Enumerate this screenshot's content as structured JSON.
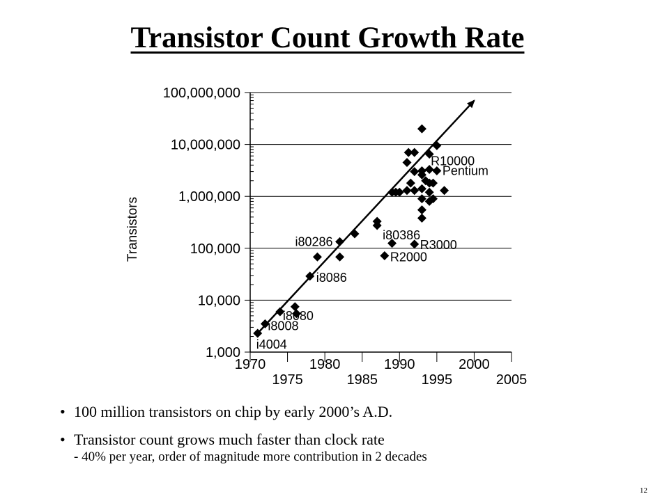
{
  "title": "Transistor Count Growth Rate",
  "chart_data": {
    "type": "scatter",
    "ylabel": "Transistors",
    "xlabel": "",
    "y_scale": "log",
    "xlim": [
      1970,
      2005
    ],
    "ylim": [
      1000,
      100000000
    ],
    "x_ticks_upper": [
      "1970",
      "1980",
      "1990",
      "2000"
    ],
    "x_ticks_lower": [
      "1975",
      "1985",
      "1995",
      "2005"
    ],
    "y_ticks": [
      "1,000",
      "10,000",
      "100,000",
      "1,000,000",
      "10,000,000",
      "100,000,000"
    ],
    "grid": "horizontal lines at each decade",
    "trend_line": {
      "from": [
        1971,
        2300
      ],
      "to": [
        2000,
        70000000
      ]
    },
    "points": [
      {
        "x": 1971.0,
        "y": 2300
      },
      {
        "x": 1972.0,
        "y": 3500
      },
      {
        "x": 1974.0,
        "y": 6000
      },
      {
        "x": 1976.0,
        "y": 7500
      },
      {
        "x": 1976.2,
        "y": 5500
      },
      {
        "x": 1978.0,
        "y": 29000
      },
      {
        "x": 1979.0,
        "y": 68000
      },
      {
        "x": 1982.0,
        "y": 134000
      },
      {
        "x": 1982.0,
        "y": 68000
      },
      {
        "x": 1984.0,
        "y": 190000
      },
      {
        "x": 1987.0,
        "y": 275000
      },
      {
        "x": 1987.0,
        "y": 330000
      },
      {
        "x": 1988.0,
        "y": 72000
      },
      {
        "x": 1989.0,
        "y": 1200000
      },
      {
        "x": 1989.5,
        "y": 1200000
      },
      {
        "x": 1990.0,
        "y": 1200000
      },
      {
        "x": 1989.0,
        "y": 125000
      },
      {
        "x": 1991.0,
        "y": 4500000
      },
      {
        "x": 1991.2,
        "y": 7000000
      },
      {
        "x": 1991.0,
        "y": 1300000
      },
      {
        "x": 1991.5,
        "y": 1800000
      },
      {
        "x": 1992.0,
        "y": 7000000
      },
      {
        "x": 1992.0,
        "y": 1300000
      },
      {
        "x": 1992.0,
        "y": 3000000
      },
      {
        "x": 1992.0,
        "y": 120000
      },
      {
        "x": 1993.0,
        "y": 20000000
      },
      {
        "x": 1993.0,
        "y": 3100000
      },
      {
        "x": 1993.0,
        "y": 2600000
      },
      {
        "x": 1993.0,
        "y": 1400000
      },
      {
        "x": 1993.0,
        "y": 900000
      },
      {
        "x": 1993.0,
        "y": 550000
      },
      {
        "x": 1993.0,
        "y": 380000
      },
      {
        "x": 1993.5,
        "y": 2000000
      },
      {
        "x": 1994.0,
        "y": 6500000
      },
      {
        "x": 1994.0,
        "y": 3300000
      },
      {
        "x": 1994.0,
        "y": 1800000
      },
      {
        "x": 1994.0,
        "y": 1200000
      },
      {
        "x": 1994.0,
        "y": 800000
      },
      {
        "x": 1994.5,
        "y": 1800000
      },
      {
        "x": 1994.5,
        "y": 900000
      },
      {
        "x": 1995.0,
        "y": 3100000
      },
      {
        "x": 1995.0,
        "y": 9500000
      },
      {
        "x": 1996.0,
        "y": 1300000
      }
    ],
    "annotations": [
      {
        "label": "i4004",
        "x": 1971.0,
        "y": 2300
      },
      {
        "label": "i8008",
        "x": 1972.0,
        "y": 3500
      },
      {
        "label": "i8080",
        "x": 1974.0,
        "y": 6000
      },
      {
        "label": "i8086",
        "x": 1978.0,
        "y": 29000
      },
      {
        "label": "i80286",
        "x": 1982.0,
        "y": 134000
      },
      {
        "label": "i80386",
        "x": 1987.0,
        "y": 275000
      },
      {
        "label": "R2000",
        "x": 1988.0,
        "y": 72000
      },
      {
        "label": "R3000",
        "x": 1992.0,
        "y": 120000
      },
      {
        "label": "Pentium",
        "x": 1995.0,
        "y": 3100000
      },
      {
        "label": "R10000",
        "x": 1994.0,
        "y": 6500000
      }
    ]
  },
  "bullets": {
    "b1": "100 million transistors on chip by early 2000’s A.D.",
    "b2": "Transistor count grows much faster than clock rate",
    "b2_sub": "- 40% per year, order of magnitude more contribution in 2 decades"
  },
  "page_number": "12"
}
